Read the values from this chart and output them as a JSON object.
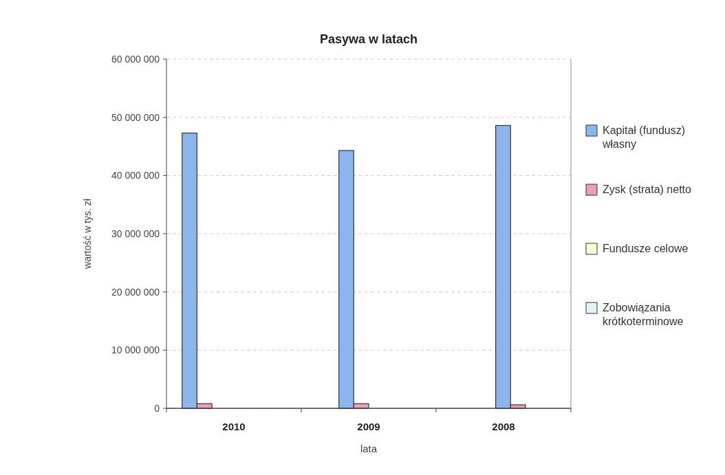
{
  "chart_data": {
    "type": "bar",
    "title": "Pasywa w latach",
    "xlabel": "lata",
    "ylabel": "wartość w tys. zł",
    "categories": [
      "2010",
      "2009",
      "2008"
    ],
    "series": [
      {
        "name": "Kapitał (fundusz) własny",
        "color": "#8eb4ec",
        "values": [
          47300000,
          44300000,
          48600000
        ]
      },
      {
        "name": "Zysk (strata) netto",
        "color": "#f09cc0",
        "values": [
          800000,
          800000,
          600000
        ]
      },
      {
        "name": "Fundusze celowe",
        "color": "#fdfbd8",
        "values": [
          0,
          0,
          0
        ]
      },
      {
        "name": "Zobowiązania krótkoterminowe",
        "color": "#dff4f8",
        "values": [
          0,
          0,
          0
        ]
      }
    ],
    "ylim": [
      0,
      60000000
    ],
    "yticks": [
      {
        "value": 0,
        "label": "0"
      },
      {
        "value": 10000000,
        "label": "10 000 000"
      },
      {
        "value": 20000000,
        "label": "20 000 000"
      },
      {
        "value": 30000000,
        "label": "30 000 000"
      },
      {
        "value": 40000000,
        "label": "40 000 000"
      },
      {
        "value": 50000000,
        "label": "50 000 000"
      },
      {
        "value": 60000000,
        "label": "60 000 000"
      }
    ],
    "grid": "y",
    "legend": "right"
  }
}
